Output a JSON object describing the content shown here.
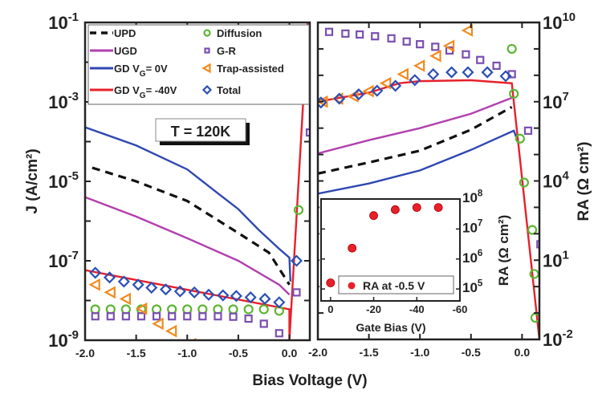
{
  "chart_data": [
    {
      "type": "line",
      "panel": "left",
      "xlabel": "Bias Voltage (V)",
      "ylabel": "J (A/cm²)",
      "y_scale": "log",
      "xlim": [
        -2.0,
        0.2
      ],
      "ylim": [
        1e-09,
        0.1
      ],
      "x_ticks": [
        "-2.0",
        "-1.5",
        "-1.0",
        "-0.5",
        "0.0"
      ],
      "y_ticks": [
        {
          "base": "10",
          "exp": "-1"
        },
        {
          "base": "10",
          "exp": "-3"
        },
        {
          "base": "10",
          "exp": "-5"
        },
        {
          "base": "10",
          "exp": "-7"
        },
        {
          "base": "10",
          "exp": "-9"
        }
      ],
      "annotation": "T = 120K",
      "legend_position": "top",
      "legend": [
        {
          "label": "UPD",
          "sub": "",
          "suffix": ""
        },
        {
          "label": "UGD",
          "sub": "",
          "suffix": ""
        },
        {
          "label": "GD V",
          "sub": "G",
          "suffix": "= 0V"
        },
        {
          "label": "GD V",
          "sub": "G",
          "suffix": "= -40V"
        },
        {
          "label": "Diffusion",
          "sub": "",
          "suffix": ""
        },
        {
          "label": "G-R",
          "sub": "",
          "suffix": ""
        },
        {
          "label": "Trap-assisted",
          "sub": "",
          "suffix": ""
        },
        {
          "label": "Total",
          "sub": "",
          "suffix": ""
        }
      ],
      "lines": [
        {
          "name": "UPD",
          "color": "#111111",
          "dash": true,
          "points": [
            [
              -1.93,
              2.2e-05
            ],
            [
              -1.5,
              1e-05
            ],
            [
              -1.0,
              3.2e-06
            ],
            [
              -0.5,
              5e-07
            ],
            [
              -0.2,
              1.6e-07
            ],
            [
              -0.05,
              4e-08
            ],
            [
              0.0,
              2.5e-08
            ]
          ]
        },
        {
          "name": "UGD",
          "color": "#b23fae",
          "dash": false,
          "points": [
            [
              -2.0,
              4e-06
            ],
            [
              -1.5,
              1.3e-06
            ],
            [
              -1.0,
              3.7e-07
            ],
            [
              -0.5,
              1e-07
            ],
            [
              -0.1,
              2.5e-08
            ],
            [
              0.0,
              1.4e-08
            ]
          ]
        },
        {
          "name": "GD VG= 0V",
          "color": "#2f48b0",
          "dash": false,
          "points": [
            [
              -2.0,
              0.00023
            ],
            [
              -1.5,
              8e-05
            ],
            [
              -1.0,
              2e-05
            ],
            [
              -0.7,
              5e-06
            ],
            [
              -0.5,
              2e-06
            ],
            [
              -0.3,
              6e-07
            ],
            [
              -0.1,
              2e-07
            ],
            [
              0.0,
              1.2e-07
            ],
            [
              0.01,
              3e-08
            ]
          ]
        },
        {
          "name": "GD VG= -40V",
          "color": "#e8202a",
          "dash": false,
          "points": [
            [
              -2.0,
              5.8e-08
            ],
            [
              0.0,
              6e-09
            ],
            [
              0.0,
              1e-09
            ],
            [
              0.09,
              1e-05
            ],
            [
              0.18,
              0.1
            ]
          ]
        }
      ],
      "markers": [
        {
          "name": "Diffusion",
          "shape": "circle",
          "color": "#5cb531",
          "points": [
            [
              -1.9,
              6e-09
            ],
            [
              -1.75,
              6e-09
            ],
            [
              -1.6,
              6e-09
            ],
            [
              -1.45,
              6e-09
            ],
            [
              -1.3,
              6e-09
            ],
            [
              -1.15,
              6e-09
            ],
            [
              -1.0,
              6e-09
            ],
            [
              -0.85,
              6e-09
            ],
            [
              -0.7,
              6e-09
            ],
            [
              -0.55,
              6e-09
            ],
            [
              -0.4,
              6e-09
            ],
            [
              -0.25,
              6e-09
            ],
            [
              -0.1,
              5.5e-09
            ],
            [
              0.09,
              1.9e-06
            ]
          ]
        },
        {
          "name": "G-R",
          "shape": "square",
          "color": "#7a4fb0",
          "points": [
            [
              -1.9,
              4e-09
            ],
            [
              -1.75,
              4e-09
            ],
            [
              -1.6,
              4e-09
            ],
            [
              -1.45,
              4e-09
            ],
            [
              -1.3,
              4e-09
            ],
            [
              -1.15,
              4e-09
            ],
            [
              -1.0,
              4e-09
            ],
            [
              -0.85,
              4e-09
            ],
            [
              -0.7,
              4e-09
            ],
            [
              -0.55,
              3.9e-09
            ],
            [
              -0.4,
              3.5e-09
            ],
            [
              -0.25,
              2.6e-09
            ],
            [
              -0.1,
              1.5e-09
            ],
            [
              0.07,
              1.6e-08
            ],
            [
              0.2,
              0.00017
            ]
          ]
        },
        {
          "name": "Trap-assisted",
          "shape": "triangle",
          "color": "#f28a1e",
          "points": [
            [
              -1.9,
              2.5e-08
            ],
            [
              -1.75,
              1.6e-08
            ],
            [
              -1.6,
              1.1e-08
            ],
            [
              -1.44,
              6.2e-09
            ],
            [
              -1.28,
              2.6e-09
            ],
            [
              -1.15,
              1.7e-09
            ],
            [
              -0.96,
              8e-10
            ]
          ]
        },
        {
          "name": "Total",
          "shape": "diamond",
          "color": "#2b4fb5",
          "points": [
            [
              -1.9,
              5e-08
            ],
            [
              -1.76,
              3.8e-08
            ],
            [
              -1.62,
              3e-08
            ],
            [
              -1.48,
              2.5e-08
            ],
            [
              -1.35,
              2.1e-08
            ],
            [
              -1.21,
              1.9e-08
            ],
            [
              -1.07,
              1.7e-08
            ],
            [
              -0.93,
              1.6e-08
            ],
            [
              -0.79,
              1.4e-08
            ],
            [
              -0.65,
              1.35e-08
            ],
            [
              -0.52,
              1.3e-08
            ],
            [
              -0.38,
              1.2e-08
            ],
            [
              -0.24,
              1.1e-08
            ],
            [
              -0.1,
              9e-09
            ],
            [
              0.07,
              1e-07
            ]
          ]
        }
      ]
    },
    {
      "type": "line",
      "panel": "right",
      "xlabel": "Bias Voltage (V)",
      "ylabel": "RA (Ω cm²)",
      "y_scale": "log",
      "xlim": [
        -2.0,
        0.17
      ],
      "ylim": [
        0.01,
        10000000000.0
      ],
      "x_ticks": [
        "-2.0",
        "-1.5",
        "-1.0",
        "-0.5",
        "0.0"
      ],
      "y_ticks": [
        {
          "base": "10",
          "exp": "10"
        },
        {
          "base": "10",
          "exp": "7"
        },
        {
          "base": "10",
          "exp": "4"
        },
        {
          "base": "10",
          "exp": "1"
        },
        {
          "base": "10",
          "exp": "-2"
        }
      ],
      "lines": [
        {
          "name": "UPD",
          "color": "#111111",
          "dash": true,
          "points": [
            [
              -2.0,
              19000.0
            ],
            [
              -1.5,
              50000.0
            ],
            [
              -1.0,
              140000.0
            ],
            [
              -0.5,
              870000.0
            ],
            [
              -0.1,
              6300000.0
            ]
          ]
        },
        {
          "name": "UGD",
          "color": "#b23fae",
          "dash": false,
          "points": [
            [
              -2.0,
              110000.0
            ],
            [
              -1.5,
              350000.0
            ],
            [
              -1.0,
              1000000.0
            ],
            [
              -0.5,
              3500000.0
            ],
            [
              -0.1,
              14000000.0
            ]
          ]
        },
        {
          "name": "GD VG= 0V",
          "color": "#2f48b0",
          "dash": false,
          "points": [
            [
              -2.0,
              3300.0
            ],
            [
              -1.5,
              8000.0
            ],
            [
              -1.0,
              25000.0
            ],
            [
              -0.5,
              150000.0
            ],
            [
              -0.08,
              800000.0
            ],
            [
              -0.04,
              300000.0
            ]
          ]
        },
        {
          "name": "GD VG= -40V",
          "color": "#e8202a",
          "dash": false,
          "points": [
            [
              -2.0,
              10000000.0
            ],
            [
              -1.5,
              22000000.0
            ],
            [
              -1.2,
              50000000.0
            ],
            [
              -1.0,
              60000000.0
            ],
            [
              -0.5,
              65000000.0
            ],
            [
              -0.1,
              50000000.0
            ],
            [
              0.17,
              0.01
            ]
          ]
        }
      ],
      "markers": [
        {
          "name": "Diffusion",
          "shape": "circle",
          "color": "#5cb531",
          "points": [
            [
              -0.1,
              1000000000.0
            ],
            [
              -0.08,
              20000000.0
            ],
            [
              -0.02,
              400000.0
            ],
            [
              0.02,
              8700.0
            ],
            [
              0.1,
              140.0
            ],
            [
              0.12,
              3
            ],
            [
              0.13,
              0.066
            ]
          ]
        },
        {
          "name": "G-R",
          "shape": "square",
          "color": "#7a4fb0",
          "points": [
            [
              -1.89,
              4400000000.0
            ],
            [
              -1.73,
              3800000000.0
            ],
            [
              -1.59,
              3500000000.0
            ],
            [
              -1.44,
              3000000000.0
            ],
            [
              -1.28,
              2500000000.0
            ],
            [
              -1.13,
              1900000000.0
            ],
            [
              -1.0,
              1500000000.0
            ],
            [
              -0.85,
              1200000000.0
            ],
            [
              -0.71,
              870000000.0
            ],
            [
              -0.55,
              620000000.0
            ],
            [
              -0.41,
              380000000.0
            ],
            [
              -0.25,
              230000000.0
            ],
            [
              -0.1,
              110000000.0
            ],
            [
              0.06,
              800000.0
            ],
            [
              0.18,
              40
            ]
          ]
        },
        {
          "name": "Trap-assisted",
          "shape": "triangle",
          "color": "#f28a1e",
          "points": [
            [
              -1.95,
              10000000.0
            ],
            [
              -1.8,
              13000000.0
            ],
            [
              -1.65,
              16000000.0
            ],
            [
              -1.5,
              25000000.0
            ],
            [
              -1.33,
              50000000.0
            ],
            [
              -1.16,
              110000000.0
            ],
            [
              -1.0,
              230000000.0
            ],
            [
              -0.84,
              540000000.0
            ],
            [
              -0.71,
              1300000000.0
            ],
            [
              -0.53,
              5000000000.0
            ]
          ]
        },
        {
          "name": "Total",
          "shape": "diamond",
          "color": "#2b4fb5",
          "points": [
            [
              -1.97,
              9300000.0
            ],
            [
              -1.79,
              13000000.0
            ],
            [
              -1.6,
              19000000.0
            ],
            [
              -1.42,
              26000000.0
            ],
            [
              -1.24,
              40000000.0
            ],
            [
              -1.05,
              66000000.0
            ],
            [
              -0.87,
              110000000.0
            ],
            [
              -0.69,
              130000000.0
            ],
            [
              -0.53,
              130000000.0
            ],
            [
              -0.34,
              130000000.0
            ],
            [
              -0.16,
              93000000.0
            ]
          ]
        }
      ]
    },
    {
      "type": "scatter",
      "panel": "inset",
      "xlabel": "Gate Bias (V)",
      "ylabel": "RA (Ω cm²)",
      "y_scale": "log",
      "xlim": [
        4.4,
        -60
      ],
      "ylim": [
        40000.0,
        100000000.0
      ],
      "x_ticks": [
        "0",
        "-20",
        "-40",
        "-60"
      ],
      "y_ticks": [
        {
          "base": "10",
          "exp": "8"
        },
        {
          "base": "10",
          "exp": "7"
        },
        {
          "base": "10",
          "exp": "6"
        },
        {
          "base": "10",
          "exp": "5"
        }
      ],
      "legend": "RA at -0.5 V",
      "legend_position": "bottom-right",
      "color": "#e8202a",
      "x": [
        0,
        -10,
        -20,
        -30,
        -40,
        -50
      ],
      "y": [
        160000.0,
        2300000.0,
        28000000.0,
        44000000.0,
        52000000.0,
        52000000.0
      ]
    }
  ]
}
